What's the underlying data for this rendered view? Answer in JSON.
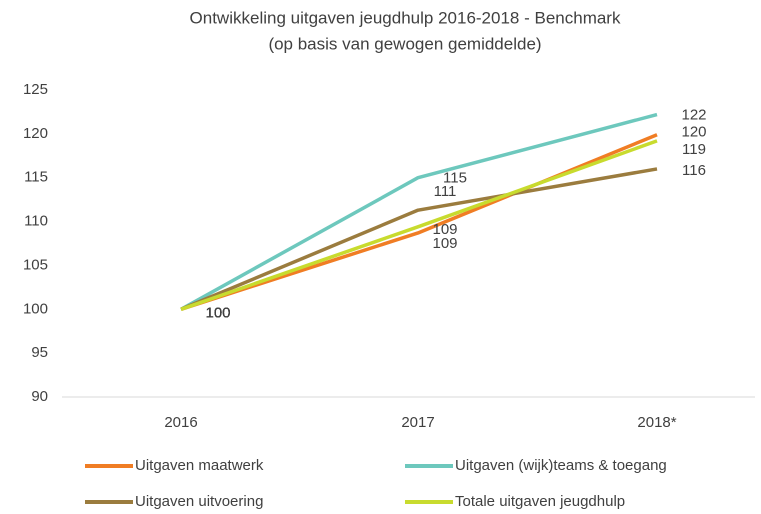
{
  "chart_data": {
    "type": "line",
    "title": "Ontwikkeling uitgaven jeugdhulp 2016-2018 - Benchmark",
    "subtitle": "(op basis van gewogen gemiddelde)",
    "categories": [
      "2016",
      "2017",
      "2018*"
    ],
    "ylim": [
      90,
      125
    ],
    "yticks": [
      90,
      95,
      100,
      105,
      110,
      115,
      120,
      125
    ],
    "grid": false,
    "legend": "bottom",
    "series": [
      {
        "name": "Uitgaven maatwerk",
        "color": "#f07d24",
        "values": [
          100,
          108.7,
          119.9
        ],
        "value_labels": [
          "100",
          "109",
          "120"
        ]
      },
      {
        "name": "Uitgaven (wijk)teams & toegang",
        "color": "#6dc8bd",
        "values": [
          100,
          115,
          122.2
        ],
        "value_labels": [
          "100",
          "115",
          "122"
        ]
      },
      {
        "name": "Uitgaven uitvoering",
        "color": "#9b7c3e",
        "values": [
          100,
          111.3,
          116
        ],
        "value_labels": [
          "100",
          "111",
          "116"
        ]
      },
      {
        "name": "Totale uitgaven jeugdhulp",
        "color": "#c8db2e",
        "values": [
          100,
          109.4,
          119.2
        ],
        "value_labels": [
          "100",
          "109",
          "119"
        ]
      }
    ]
  }
}
